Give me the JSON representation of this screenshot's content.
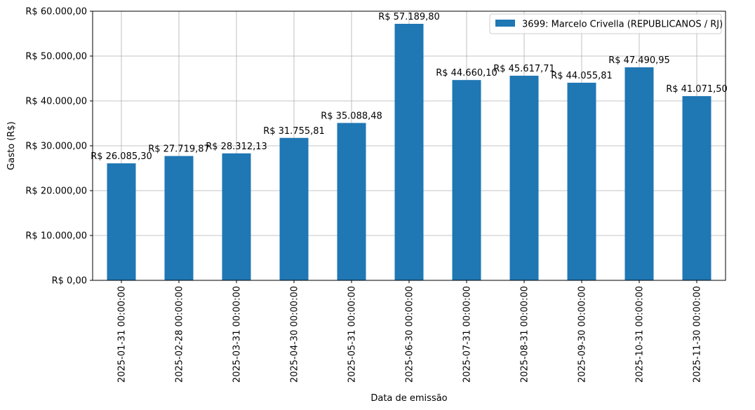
{
  "chart_data": {
    "type": "bar",
    "xlabel": "Data de emissão",
    "ylabel": "Gasto (R$)",
    "categories": [
      "2025-01-31 00:00:00",
      "2025-02-28 00:00:00",
      "2025-03-31 00:00:00",
      "2025-04-30 00:00:00",
      "2025-05-31 00:00:00",
      "2025-06-30 00:00:00",
      "2025-07-31 00:00:00",
      "2025-08-31 00:00:00",
      "2025-09-30 00:00:00",
      "2025-10-31 00:00:00",
      "2025-11-30 00:00:00"
    ],
    "series": [
      {
        "name": "3699: Marcelo Crivella (REPUBLICANOS / RJ)",
        "color": "#1f77b4",
        "values": [
          26085.3,
          27719.87,
          28312.13,
          31755.81,
          35088.48,
          57189.8,
          44660.1,
          45617.71,
          44055.81,
          47490.95,
          41071.5
        ],
        "data_labels": [
          "R$ 26.085,30",
          "R$ 27.719,87",
          "R$ 28.312,13",
          "R$ 31.755,81",
          "R$ 35.088,48",
          "R$ 57.189,80",
          "R$ 44.660,10",
          "R$ 45.617,71",
          "R$ 44.055,81",
          "R$ 47.490,95",
          "R$ 41.071,50"
        ]
      }
    ],
    "ylim": [
      0,
      60000
    ],
    "yticks": [
      0,
      10000,
      20000,
      30000,
      40000,
      50000,
      60000
    ],
    "ytick_labels": [
      "R$ 0,00",
      "R$ 10.000,00",
      "R$ 20.000,00",
      "R$ 30.000,00",
      "R$ 40.000,00",
      "R$ 50.000,00",
      "R$ 60.000,00"
    ],
    "grid": true,
    "legend_position": "top-right"
  }
}
